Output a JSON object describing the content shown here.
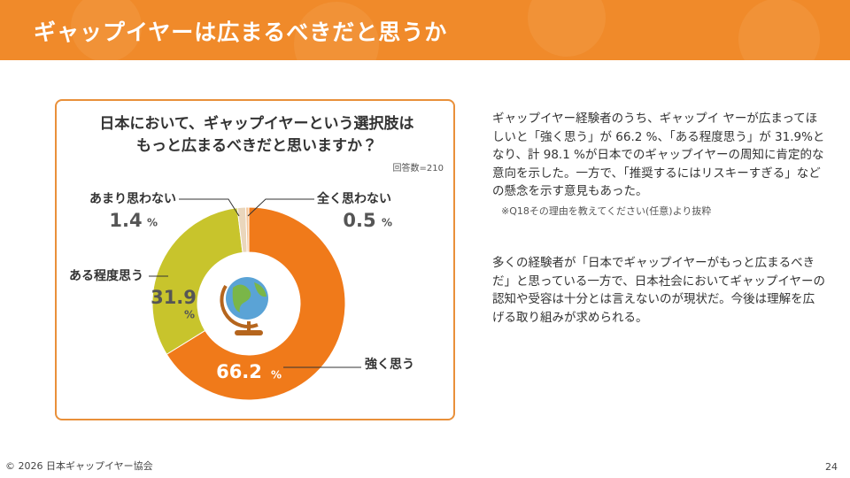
{
  "header": {
    "title": "ギャップイヤーは広まるべきだと思うか"
  },
  "chart_data": {
    "type": "pie",
    "title": [
      "日本において、ギャップイヤーという選択肢は",
      "もっと広まるべきだと思いますか？"
    ],
    "subtitle": "回答数=210",
    "categories": [
      "強く思う",
      "ある程度思う",
      "あまり思わない",
      "全く思わない"
    ],
    "values": [
      66.2,
      31.9,
      1.4,
      0.5
    ],
    "unit": "%",
    "colors": [
      "#f07a1a",
      "#c8c42c",
      "#ead6bc",
      "#f5c79a"
    ]
  },
  "text": {
    "paragraphs": [
      "ギャップイヤー経験者のうち、ギャップイ ヤーが広まってほしいと「強く思う」が 66.2 %、「ある程度思う」が 31.9%となり、計 98.1 %が日本でのギャップイヤーの周知に肯定的な意向を示した。一方で、「推奨するにはリスキーすぎる」などの懸念を示す意見もあった。",
      "多くの経験者が「日本でギャップイヤーがもっと広まるべきだ」と思っている一方で、日本社会においてギャップイヤーの認知や受容は十分とは言えないのが現状だ。今後は理解を広げる取り組みが求められる。"
    ],
    "note": "※Q18その理由を教えてください(任意)より抜粋"
  },
  "footer": {
    "copyright": "© 2026 日本ギャップイヤー協会",
    "page": "24"
  }
}
